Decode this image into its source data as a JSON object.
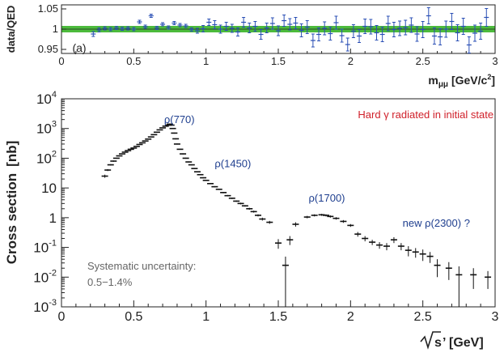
{
  "chart_data": [
    {
      "type": "scatter",
      "panel": "(a)",
      "ylabel": "data/QED",
      "xlabel_main": "m",
      "xlabel_sub": "μμ",
      "xlabel_unit_pre": " [GeV/c",
      "xlabel_unit_sup": "2",
      "xlabel_unit_post": "]",
      "xlim": [
        0,
        3
      ],
      "ylim": [
        0.94,
        1.06
      ],
      "xticks": [
        0,
        0.5,
        1,
        1.5,
        2,
        2.5,
        3
      ],
      "xtick_labels": [
        "0",
        "0.5",
        "1",
        "1.5",
        "2",
        "2.5",
        "3"
      ],
      "yticks": [
        0.95,
        1,
        1.05
      ],
      "ytick_labels": [
        "0.95",
        "1",
        "1.05"
      ],
      "band": {
        "low": 0.992,
        "high": 1.008,
        "color": "#4cbb3c"
      },
      "reference_line": 1.0,
      "marker_color": "#2a4fb5",
      "series": [
        {
          "x": [
            0.22,
            0.26,
            0.3,
            0.34,
            0.38,
            0.42,
            0.46,
            0.5,
            0.54,
            0.58,
            0.62,
            0.66,
            0.7,
            0.74,
            0.78,
            0.82,
            0.86,
            0.9,
            0.94,
            0.98,
            1.02,
            1.06,
            1.1,
            1.14,
            1.18,
            1.22,
            1.26,
            1.3,
            1.34,
            1.38,
            1.42,
            1.46,
            1.5,
            1.54,
            1.58,
            1.62,
            1.66,
            1.7,
            1.74,
            1.78,
            1.82,
            1.86,
            1.9,
            1.94,
            1.98,
            2.02,
            2.06,
            2.1,
            2.14,
            2.18,
            2.22,
            2.26,
            2.3,
            2.34,
            2.38,
            2.42,
            2.46,
            2.5,
            2.54,
            2.58,
            2.62,
            2.66,
            2.7,
            2.74,
            2.78,
            2.82,
            2.86,
            2.9,
            2.94
          ],
          "y": [
            0.988,
            0.998,
            1.002,
            1.0,
            1.003,
            1.001,
            1.002,
            1.0,
            1.018,
            1.006,
            1.033,
            1.003,
            1.012,
            1.004,
            1.015,
            1.01,
            1.008,
            0.999,
            0.996,
            1.001,
            1.017,
            1.011,
            1.0,
            1.007,
            1.002,
            0.993,
            1.017,
            1.003,
            1.007,
            0.987,
            1.003,
            1.014,
            0.996,
            1.021,
            1.012,
            1.015,
            0.997,
            1.005,
            0.972,
            0.987,
            1.002,
            0.989,
            1.016,
            0.984,
            0.962,
            0.995,
            0.983,
            1.007,
            1.006,
            0.991,
            0.987,
            1.014,
            0.999,
            1.002,
            1.004,
            1.01,
            0.988,
            0.999,
            1.033,
            0.983,
            0.981,
            1.0,
            1.019,
            0.991,
            1.007,
            0.961,
            0.99,
            0.995,
            1.029
          ],
          "err": [
            0.006,
            0.005,
            0.004,
            0.004,
            0.004,
            0.004,
            0.004,
            0.004,
            0.004,
            0.004,
            0.004,
            0.004,
            0.004,
            0.004,
            0.004,
            0.004,
            0.004,
            0.004,
            0.006,
            0.008,
            0.008,
            0.01,
            0.01,
            0.01,
            0.01,
            0.01,
            0.012,
            0.012,
            0.012,
            0.012,
            0.012,
            0.014,
            0.012,
            0.014,
            0.014,
            0.014,
            0.016,
            0.016,
            0.016,
            0.016,
            0.016,
            0.016,
            0.016,
            0.016,
            0.016,
            0.016,
            0.016,
            0.018,
            0.018,
            0.018,
            0.018,
            0.018,
            0.018,
            0.018,
            0.018,
            0.018,
            0.018,
            0.02,
            0.02,
            0.02,
            0.02,
            0.02,
            0.02,
            0.02,
            0.02,
            0.02,
            0.02,
            0.02,
            0.022
          ]
        }
      ]
    },
    {
      "type": "scatter",
      "yscale": "log",
      "ylabel_main": "Cross section",
      "ylabel_unit": "[nb]",
      "xlabel_sqrt": "s",
      "xlabel_post": "’ [GeV]",
      "xlim": [
        0,
        3
      ],
      "ylim": [
        0.001,
        10000
      ],
      "xticks": [
        0,
        0.5,
        1,
        1.5,
        2,
        2.5,
        3
      ],
      "xtick_labels": [
        "0",
        "0.5",
        "1",
        "1.5",
        "2",
        "2.5",
        "3"
      ],
      "ytick_values": [
        0.001,
        0.01,
        0.1,
        1,
        10,
        100,
        1000,
        10000
      ],
      "ytick_labels": [
        {
          "base": "10",
          "exp": "-3"
        },
        {
          "base": "10",
          "exp": "-2"
        },
        {
          "base": "10",
          "exp": "-1"
        },
        {
          "base": "1",
          "exp": ""
        },
        {
          "base": "10",
          "exp": ""
        },
        {
          "base": "10",
          "exp": "2"
        },
        {
          "base": "10",
          "exp": "3"
        },
        {
          "base": "10",
          "exp": "4"
        }
      ],
      "marker_color": "#111111",
      "series": [
        {
          "x": [
            0.3,
            0.32,
            0.34,
            0.36,
            0.38,
            0.4,
            0.42,
            0.44,
            0.46,
            0.48,
            0.5,
            0.52,
            0.54,
            0.56,
            0.58,
            0.6,
            0.62,
            0.64,
            0.66,
            0.68,
            0.7,
            0.72,
            0.74,
            0.75,
            0.76,
            0.77,
            0.78,
            0.79,
            0.8,
            0.82,
            0.84,
            0.86,
            0.88,
            0.9,
            0.92,
            0.94,
            0.96,
            0.98,
            1.0,
            1.03,
            1.06,
            1.09,
            1.12,
            1.15,
            1.18,
            1.21,
            1.24,
            1.27,
            1.3,
            1.33,
            1.36,
            1.39,
            1.44,
            1.5,
            1.55,
            1.58,
            1.62,
            1.7,
            1.75,
            1.8,
            1.83,
            1.86,
            1.9,
            1.95,
            2.0,
            2.05,
            2.1,
            2.15,
            2.2,
            2.25,
            2.3,
            2.35,
            2.4,
            2.45,
            2.5,
            2.55,
            2.6,
            2.68,
            2.75,
            2.85,
            2.95
          ],
          "y": [
            25,
            40,
            60,
            80,
            100,
            120,
            140,
            160,
            180,
            200,
            220,
            250,
            290,
            330,
            380,
            440,
            520,
            620,
            750,
            900,
            1050,
            1200,
            1300,
            1400,
            1300,
            1000,
            700,
            450,
            300,
            200,
            140,
            100,
            75,
            60,
            45,
            35,
            28,
            22,
            18,
            14,
            11,
            9,
            7,
            5.5,
            4.5,
            3.6,
            3.0,
            2.5,
            2.0,
            1.6,
            1.2,
            0.9,
            0.7,
            0.14,
            0.025,
            0.18,
            0.6,
            1.05,
            1.2,
            1.25,
            1.2,
            1.1,
            0.95,
            0.75,
            0.55,
            0.28,
            0.2,
            0.15,
            0.12,
            0.11,
            0.18,
            0.11,
            0.08,
            0.07,
            0.06,
            0.05,
            0.025,
            0.02,
            0.012,
            0.012,
            0.01
          ],
          "err": [
            3,
            3,
            3,
            4,
            4,
            5,
            5,
            6,
            6,
            7,
            7,
            8,
            9,
            10,
            12,
            14,
            16,
            18,
            20,
            25,
            30,
            40,
            50,
            60,
            50,
            40,
            30,
            20,
            12,
            8,
            6,
            4,
            3,
            2.5,
            2,
            1.5,
            1.2,
            1,
            0.8,
            0.6,
            0.5,
            0.4,
            0.35,
            0.3,
            0.25,
            0.2,
            0.2,
            0.15,
            0.15,
            0.12,
            0.1,
            0.1,
            0.08,
            0.05,
            0.024,
            0.06,
            0.1,
            0.1,
            0.1,
            0.1,
            0.1,
            0.1,
            0.09,
            0.08,
            0.06,
            0.05,
            0.04,
            0.03,
            0.03,
            0.03,
            0.04,
            0.03,
            0.03,
            0.025,
            0.025,
            0.02,
            0.015,
            0.012,
            0.011,
            0.008,
            0.006
          ]
        }
      ],
      "annotations": [
        {
          "text": "ρ(770)",
          "x": 0.85,
          "y": 1500,
          "color": "blue"
        },
        {
          "text": "ρ(1450)",
          "x": 1.2,
          "y": 50,
          "color": "blue"
        },
        {
          "text": "ρ(1700)",
          "x": 1.85,
          "y": 3.5,
          "color": "blue"
        },
        {
          "text": "new ρ(2300) ?",
          "x": 2.5,
          "y": 0.5,
          "color": "blue"
        },
        {
          "text": "Hard γ radiated in initial state",
          "x": 2.52,
          "y": 2200,
          "color": "red"
        }
      ],
      "systematic": {
        "label": "Systematic uncertainty:",
        "value": "0.5−1.4%"
      }
    }
  ]
}
